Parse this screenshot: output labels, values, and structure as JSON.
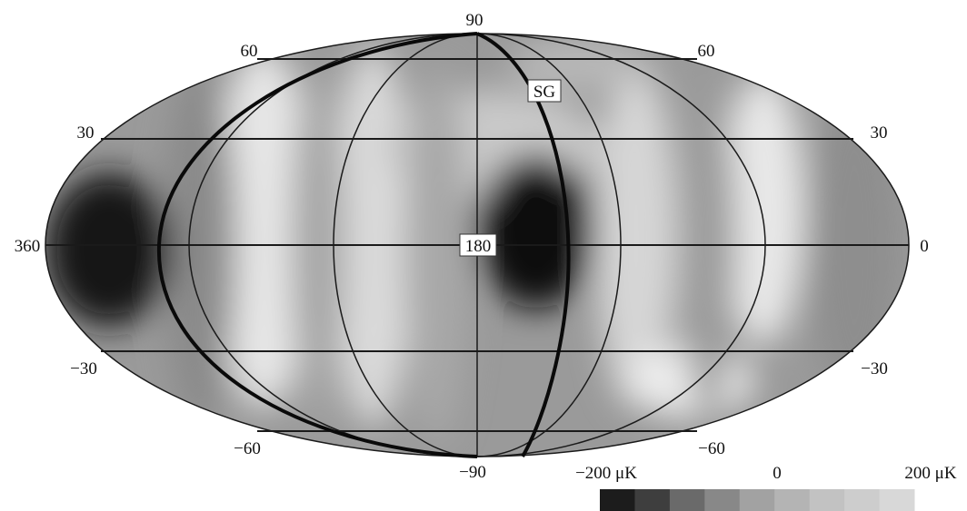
{
  "map": {
    "top_pole_label": "90",
    "bottom_pole_label": "−90",
    "center_label": "180",
    "left_edge_label": "360",
    "right_edge_label": "0",
    "lat_labels": {
      "p60_left": "60",
      "p60_right": "60",
      "p30_left": "30",
      "p30_right": "30",
      "m30_left": "−30",
      "m30_right": "−30",
      "m60_left": "−60",
      "m60_right": "−60"
    },
    "supergalactic_label": "SG"
  },
  "colorbar": {
    "min_label": "−200 μK",
    "mid_label": "0",
    "max_label": "200 μK",
    "swatches": [
      "#1c1c1c",
      "#3e3e3e",
      "#6a6a6a",
      "#888888",
      "#a2a2a2",
      "#b4b4b4",
      "#c2c2c2",
      "#cdcdcd",
      "#d8d8d8"
    ]
  }
}
